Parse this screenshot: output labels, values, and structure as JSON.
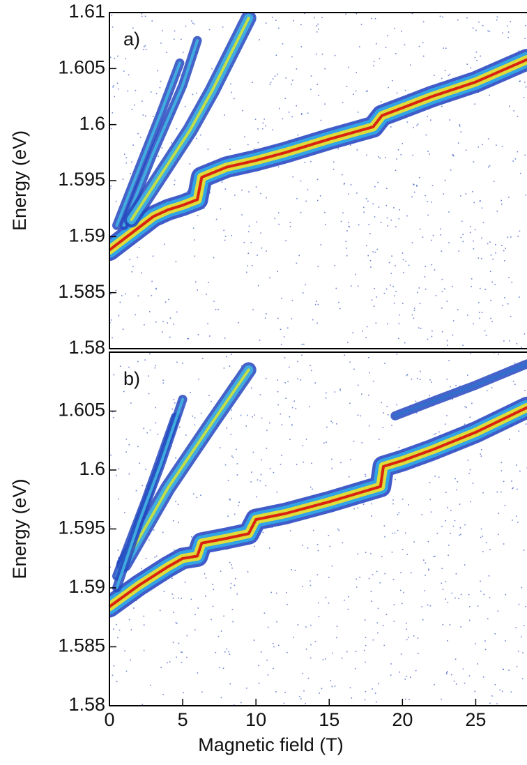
{
  "chart_data": [
    {
      "type": "line",
      "panel_label": "a)",
      "ylabel": "Energy (eV)",
      "xlim": [
        0,
        28.5
      ],
      "ylim": [
        1.58,
        1.61
      ],
      "yticks": [
        1.58,
        1.585,
        1.59,
        1.595,
        1.6,
        1.605,
        1.61
      ],
      "series": [
        {
          "colors": [
            "#2040c0",
            "#30a8e8",
            "#e8e030",
            "#d81810"
          ],
          "x": [
            0,
            1,
            2,
            3,
            4,
            5,
            6,
            6.3,
            8,
            10,
            12,
            15,
            18,
            18.6,
            20,
            22,
            25,
            28.5
          ],
          "values": [
            1.5888,
            1.5898,
            1.5908,
            1.5918,
            1.5924,
            1.5928,
            1.5933,
            1.5953,
            1.5962,
            1.5968,
            1.5975,
            1.5987,
            1.5998,
            1.6008,
            1.6015,
            1.6025,
            1.6038,
            1.6058
          ]
        },
        {
          "colors": [
            "#2448c0",
            "#40b0e0"
          ],
          "x": [
            0.5,
            2,
            3.5,
            4.8
          ],
          "values": [
            1.591,
            1.596,
            1.601,
            1.6055
          ]
        },
        {
          "colors": [
            "#2448c0",
            "#40b0e0"
          ],
          "x": [
            1,
            3,
            5,
            6
          ],
          "values": [
            1.591,
            1.5975,
            1.6035,
            1.6075
          ]
        },
        {
          "colors": [
            "#2448c0",
            "#40b0e0",
            "#c8e040"
          ],
          "x": [
            1.5,
            3.5,
            5.5,
            7,
            9.5
          ],
          "values": [
            1.5915,
            1.5955,
            1.5995,
            1.603,
            1.6095
          ]
        }
      ]
    },
    {
      "type": "line",
      "panel_label": "b)",
      "ylabel": "Energy (eV)",
      "xlabel": "Magnetic field (T)",
      "xlim": [
        0,
        28.5
      ],
      "ylim": [
        1.58,
        1.61
      ],
      "xticks": [
        0,
        5,
        10,
        15,
        20,
        25
      ],
      "yticks": [
        1.58,
        1.585,
        1.59,
        1.595,
        1.6,
        1.605
      ],
      "series": [
        {
          "colors": [
            "#2040c0",
            "#30a8e8",
            "#e8e030",
            "#d81810"
          ],
          "x": [
            0,
            2,
            4,
            5,
            6,
            6.3,
            8,
            9.5,
            10,
            12,
            15,
            18.5,
            18.7,
            20,
            22,
            25,
            28.5
          ],
          "values": [
            1.5884,
            1.5902,
            1.5918,
            1.5925,
            1.5927,
            1.5938,
            1.5942,
            1.5946,
            1.5958,
            1.5963,
            1.5973,
            1.5986,
            1.6003,
            1.6008,
            1.6017,
            1.6032,
            1.6053
          ]
        },
        {
          "colors": [
            "#2448c0",
            "#3070d0"
          ],
          "x": [
            19.5,
            22,
            25,
            28.5
          ],
          "values": [
            1.6046,
            1.6058,
            1.6072,
            1.609
          ]
        },
        {
          "colors": [
            "#2448c0",
            "#40b0e0",
            "#c8e040"
          ],
          "x": [
            1,
            4,
            7,
            9.5
          ],
          "values": [
            1.592,
            1.5985,
            1.604,
            1.6085
          ]
        },
        {
          "colors": [
            "#2448c0",
            "#40b0e0"
          ],
          "x": [
            0.5,
            2.5,
            4.5
          ],
          "values": [
            1.591,
            1.5975,
            1.6045
          ]
        },
        {
          "colors": [
            "#2448c0",
            "#40b0e0"
          ],
          "x": [
            0.5,
            2,
            3.5,
            5
          ],
          "values": [
            1.59,
            1.5955,
            1.6005,
            1.606
          ]
        }
      ]
    }
  ]
}
